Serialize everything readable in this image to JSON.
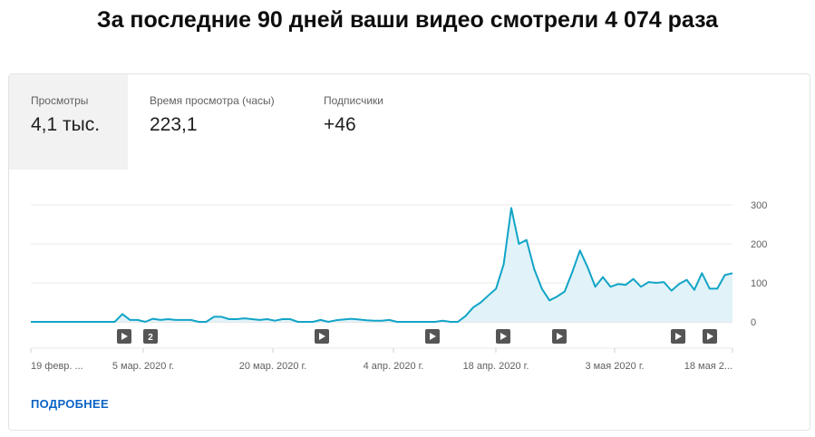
{
  "header": {
    "title": "За последние 90 дней ваши видео смотрели 4 074 раза"
  },
  "metrics": [
    {
      "label": "Просмотры",
      "value": "4,1 тыс."
    },
    {
      "label": "Время просмотра (часы)",
      "value": "223,1"
    },
    {
      "label": "Подписчики",
      "value": "+46"
    }
  ],
  "link": {
    "more_label": "ПОДРОБНЕЕ"
  },
  "colors": {
    "line": "#12a4c7",
    "fill": "#e1f3f8",
    "grid": "#e8e8e8",
    "link": "#0b63c5",
    "marker": "#606060"
  },
  "chart_data": {
    "type": "area",
    "y_ticks": [
      "0",
      "100",
      "200",
      "300"
    ],
    "ylim": [
      0,
      300
    ],
    "x_ticks": [
      "19 февр. ...",
      "5 мар. 2020 г.",
      "20 мар. 2020 г.",
      "4 апр. 2020 г.",
      "18 апр. 2020 г.",
      "3 мая 2020 г.",
      "18 мая 2..."
    ],
    "grid": true,
    "series": [
      {
        "values": [
          0,
          0,
          0,
          0,
          0,
          0,
          0,
          0,
          0,
          0,
          0,
          0,
          20,
          5,
          5,
          0,
          8,
          5,
          7,
          5,
          5,
          5,
          0,
          0,
          13,
          13,
          7,
          7,
          9,
          7,
          5,
          7,
          3,
          7,
          7,
          0,
          0,
          0,
          5,
          0,
          4,
          6,
          8,
          6,
          4,
          3,
          3,
          5,
          0,
          0,
          0,
          0,
          0,
          0,
          3,
          0,
          0,
          15,
          37,
          50,
          68,
          85,
          148,
          292,
          200,
          210,
          135,
          85,
          55,
          65,
          78,
          128,
          183,
          140,
          90,
          115,
          90,
          97,
          95,
          110,
          90,
          102,
          100,
          102,
          80,
          97,
          108,
          82,
          125,
          85,
          85,
          120,
          125
        ]
      }
    ],
    "event_markers": [
      "▶",
      "2",
      "▶",
      "▶",
      "▶",
      "▶",
      "▶",
      "▶"
    ]
  }
}
